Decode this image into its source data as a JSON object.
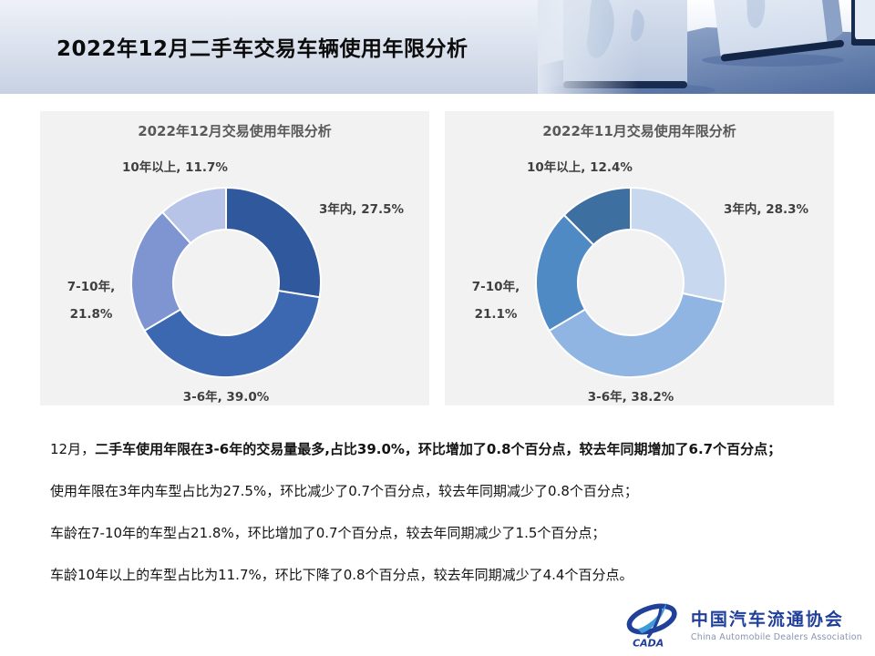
{
  "page": {
    "title": "2022年12月二手车交易车辆使用年限分析"
  },
  "chart_data": [
    {
      "type": "donut",
      "title": "2022年12月交易使用年限分析",
      "categories": [
        "3年内",
        "3-6年",
        "7-10年",
        "10年以上"
      ],
      "values": [
        27.5,
        39.0,
        21.8,
        11.7
      ],
      "unit": "%",
      "colors": [
        "#30589c",
        "#3c68b2",
        "#7e95d2",
        "#b7c3e7"
      ],
      "start_angle_deg": 0,
      "direction": "clockwise",
      "legend": "none",
      "labels": {
        "right": "3年内, 27.5%",
        "bottom": "3-6年, 39.0%",
        "left": "7-10年,\n21.8%",
        "top_left": "10年以上, 11.7%"
      }
    },
    {
      "type": "donut",
      "title": "2022年11月交易使用年限分析",
      "categories": [
        "3年内",
        "3-6年",
        "7-10年",
        "10年以上"
      ],
      "values": [
        28.3,
        38.2,
        21.1,
        12.4
      ],
      "unit": "%",
      "colors": [
        "#c7d8ef",
        "#90b5e2",
        "#4f8ac4",
        "#3e6fa1"
      ],
      "start_angle_deg": 0,
      "direction": "clockwise",
      "legend": "none",
      "labels": {
        "right": "3年内, 28.3%",
        "bottom": "3-6年, 38.2%",
        "left": "7-10年,\n21.1%",
        "top_left": "10年以上, 12.4%"
      }
    }
  ],
  "commentary": {
    "line1_prefix": "12月，",
    "line1_bold": "二手车使用年限在3-6年的交易量最多,占比39.0%，环比增加了0.8个百分点，较去年同期增加了6.7个百分点；",
    "line2": "使用年限在3年内车型占比为27.5%，环比减少了0.7个百分点，较去年同期减少了0.8个百分点；",
    "line3": "车龄在7-10年的车型占21.8%，环比增加了0.7个百分点，较去年同期减少了1.5个百分点；",
    "line4": "车龄10年以上的车型占比为11.7%，环比下降了0.8个百分点，较去年同期减少了4.4个百分点。"
  },
  "footer_logo": {
    "org_name_zh": "中国汽车流通协会",
    "org_name_en": "China Automobile Dealers Association",
    "emblem_text": "CADA",
    "brand_color": "#21409a"
  }
}
